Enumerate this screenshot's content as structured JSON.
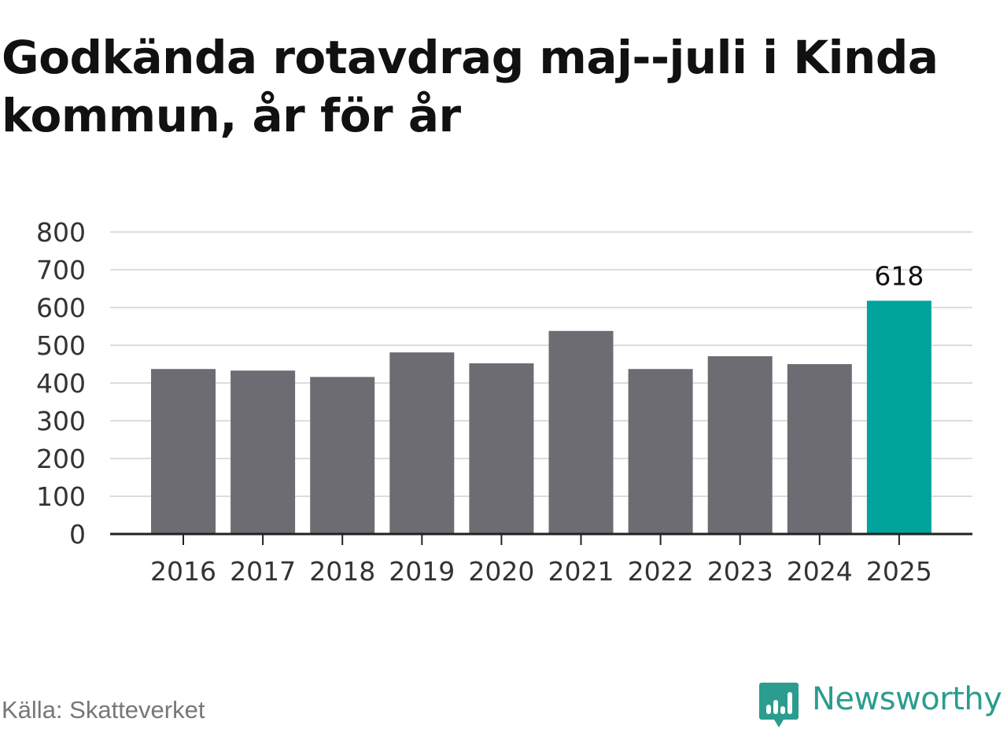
{
  "title": "Godkända rotavdrag maj--juli i Kinda kommun, år för år",
  "source": "Källa: Skatteverket",
  "brand": {
    "name": "Newsworthy",
    "icon": "newsworthy-bar-chart-icon",
    "color": "#2a9d8f"
  },
  "colors": {
    "bar": "#6d6c72",
    "highlight": "#00a49a",
    "grid": "#dddddd",
    "axis": "#222222",
    "tick_text": "#333333"
  },
  "chart_data": {
    "type": "bar",
    "categories": [
      "2016",
      "2017",
      "2018",
      "2019",
      "2020",
      "2021",
      "2022",
      "2023",
      "2024",
      "2025"
    ],
    "values": [
      437,
      433,
      416,
      481,
      452,
      538,
      437,
      471,
      450,
      618
    ],
    "highlight_index": 9,
    "data_labels": [
      {
        "index": 9,
        "text": "618"
      }
    ],
    "ylim": [
      0,
      800
    ],
    "yticks": [
      0,
      100,
      200,
      300,
      400,
      500,
      600,
      700,
      800
    ],
    "xlabel": "",
    "ylabel": "",
    "grid": true,
    "legend": false
  }
}
